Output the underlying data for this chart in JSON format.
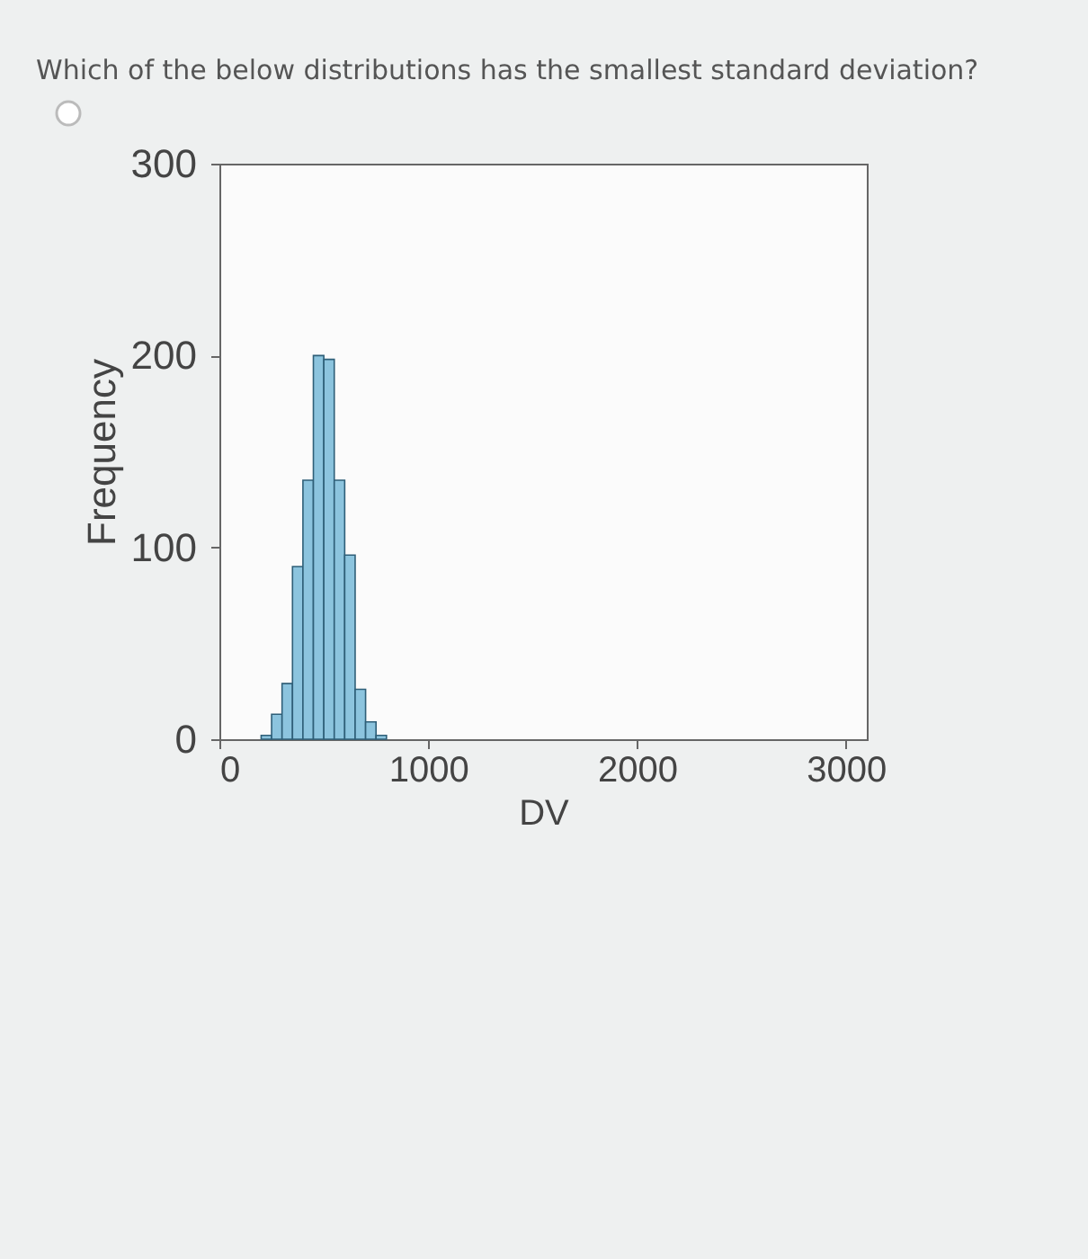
{
  "chart_data": {
    "type": "histogram",
    "title": "Which of the below distributions has the smallest standard deviation?",
    "xlabel": "DV",
    "ylabel": "Frequency",
    "bins": [
      200,
      250,
      300,
      350,
      400,
      450,
      500,
      550,
      600,
      650,
      700,
      750,
      800
    ],
    "values": [
      2,
      13,
      29,
      90,
      135,
      200,
      198,
      135,
      96,
      26,
      9,
      2
    ],
    "color": "#8cc4de",
    "xlim": [
      0,
      3100
    ],
    "xticks": [
      0,
      1000,
      2000,
      3000
    ],
    "ylim": [
      0,
      300
    ],
    "yticks": [
      0,
      100,
      200,
      300
    ],
    "grid": false
  }
}
